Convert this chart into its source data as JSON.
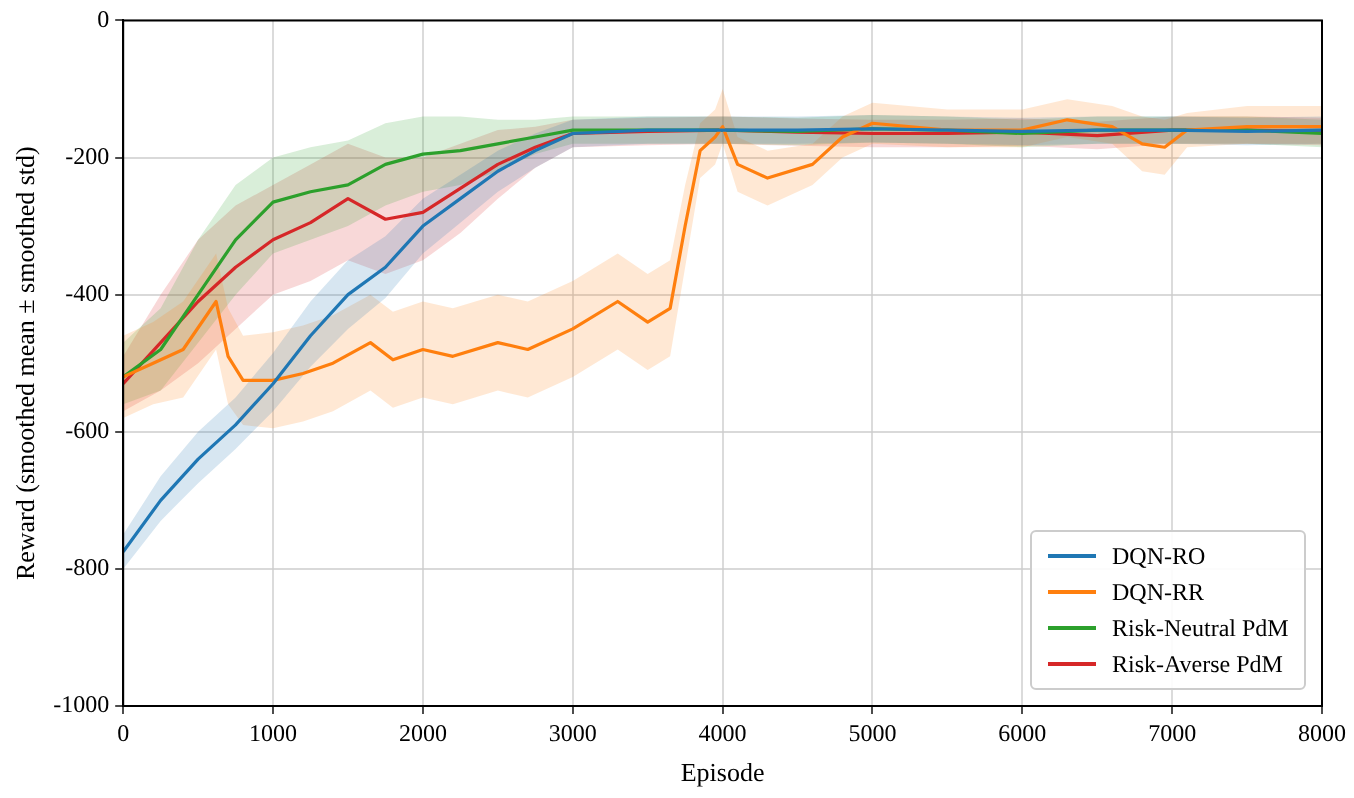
{
  "chart_data": {
    "type": "line",
    "xlabel": "Episode",
    "ylabel": "Reward (smoothed mean ± smoothed std)",
    "xlim": [
      0,
      8000
    ],
    "xticks": [
      0,
      1000,
      2000,
      3000,
      4000,
      5000,
      6000,
      7000,
      8000
    ],
    "ylim": [
      -1000,
      0
    ],
    "yticks": [
      -1000,
      -800,
      -600,
      -400,
      -200,
      0
    ],
    "grid": true,
    "legend": "bottom right",
    "line_style": "solid",
    "marker": "none",
    "series": [
      {
        "name": "DQN-RO",
        "color": "#1f77b4",
        "x": [
          0,
          250,
          500,
          750,
          1000,
          1250,
          1500,
          1750,
          2000,
          2250,
          2500,
          2750,
          3000,
          3500,
          4000,
          4500,
          5000,
          5500,
          6000,
          6500,
          7000,
          7500,
          8000
        ],
        "values": [
          -775,
          -700,
          -640,
          -590,
          -530,
          -460,
          -400,
          -360,
          -300,
          -260,
          -220,
          -190,
          -165,
          -160,
          -160,
          -160,
          -158,
          -160,
          -162,
          -160,
          -160,
          -162,
          -160
        ],
        "lower": [
          -800,
          -730,
          -675,
          -625,
          -570,
          -505,
          -450,
          -405,
          -340,
          -295,
          -250,
          -215,
          -185,
          -180,
          -180,
          -180,
          -178,
          -180,
          -182,
          -180,
          -180,
          -182,
          -180
        ],
        "upper": [
          -750,
          -665,
          -600,
          -550,
          -485,
          -410,
          -350,
          -315,
          -260,
          -225,
          -190,
          -165,
          -145,
          -140,
          -140,
          -140,
          -138,
          -140,
          -142,
          -140,
          -140,
          -142,
          -140
        ]
      },
      {
        "name": "DQN-RR",
        "color": "#ff7f0e",
        "x": [
          0,
          200,
          400,
          620,
          700,
          800,
          1000,
          1200,
          1400,
          1650,
          1800,
          2000,
          2200,
          2500,
          2700,
          3000,
          3300,
          3500,
          3650,
          3750,
          3850,
          3950,
          4000,
          4100,
          4300,
          4600,
          4800,
          5000,
          5500,
          6000,
          6300,
          6600,
          6800,
          6950,
          7100,
          7500,
          8000
        ],
        "values": [
          -520,
          -500,
          -480,
          -410,
          -490,
          -525,
          -525,
          -515,
          -500,
          -470,
          -495,
          -480,
          -490,
          -470,
          -480,
          -450,
          -410,
          -440,
          -420,
          -300,
          -190,
          -170,
          -155,
          -210,
          -230,
          -210,
          -170,
          -150,
          -160,
          -160,
          -145,
          -155,
          -180,
          -185,
          -160,
          -155,
          -155
        ],
        "lower": [
          -580,
          -560,
          -550,
          -480,
          -560,
          -590,
          -595,
          -585,
          -570,
          -540,
          -565,
          -550,
          -560,
          -540,
          -550,
          -520,
          -480,
          -510,
          -490,
          -360,
          -230,
          -210,
          -180,
          -250,
          -270,
          -240,
          -200,
          -180,
          -185,
          -185,
          -170,
          -180,
          -220,
          -225,
          -185,
          -180,
          -180
        ],
        "upper": [
          -460,
          -440,
          -410,
          -340,
          -420,
          -460,
          -455,
          -445,
          -430,
          -400,
          -425,
          -410,
          -420,
          -400,
          -410,
          -380,
          -340,
          -370,
          -350,
          -240,
          -150,
          -130,
          -100,
          -170,
          -190,
          -180,
          -140,
          -120,
          -130,
          -130,
          -115,
          -125,
          -140,
          -145,
          -135,
          -125,
          -125
        ]
      },
      {
        "name": "Risk-Neutral PdM",
        "color": "#2ca02c",
        "x": [
          0,
          250,
          500,
          750,
          1000,
          1250,
          1500,
          1750,
          2000,
          2250,
          2500,
          2750,
          3000,
          3500,
          4000,
          4500,
          5000,
          5500,
          6000,
          6500,
          7000,
          7500,
          8000
        ],
        "values": [
          -520,
          -480,
          -400,
          -320,
          -265,
          -250,
          -240,
          -210,
          -195,
          -190,
          -180,
          -170,
          -160,
          -160,
          -160,
          -162,
          -158,
          -160,
          -165,
          -160,
          -160,
          -160,
          -165
        ],
        "lower": [
          -560,
          -540,
          -470,
          -400,
          -340,
          -320,
          -300,
          -270,
          -250,
          -240,
          -220,
          -195,
          -180,
          -180,
          -180,
          -182,
          -178,
          -180,
          -185,
          -180,
          -180,
          -180,
          -185
        ],
        "upper": [
          -470,
          -420,
          -320,
          -240,
          -200,
          -185,
          -175,
          -150,
          -140,
          -140,
          -145,
          -145,
          -140,
          -140,
          -140,
          -142,
          -138,
          -140,
          -145,
          -140,
          -140,
          -140,
          -145
        ]
      },
      {
        "name": "Risk-Averse PdM",
        "color": "#d62728",
        "x": [
          0,
          250,
          500,
          750,
          1000,
          1250,
          1500,
          1750,
          2000,
          2250,
          2500,
          2750,
          3000,
          3500,
          4000,
          4500,
          5000,
          5500,
          6000,
          6500,
          7000,
          7500,
          8000
        ],
        "values": [
          -530,
          -470,
          -410,
          -360,
          -320,
          -295,
          -260,
          -290,
          -280,
          -245,
          -210,
          -185,
          -165,
          -162,
          -160,
          -163,
          -165,
          -165,
          -163,
          -168,
          -160,
          -160,
          -162
        ],
        "lower": [
          -570,
          -540,
          -500,
          -450,
          -400,
          -380,
          -350,
          -370,
          -350,
          -310,
          -260,
          -215,
          -185,
          -182,
          -180,
          -183,
          -185,
          -185,
          -183,
          -188,
          -180,
          -180,
          -182
        ],
        "upper": [
          -490,
          -400,
          -320,
          -270,
          -240,
          -210,
          -180,
          -200,
          -200,
          -180,
          -160,
          -155,
          -145,
          -142,
          -140,
          -143,
          -145,
          -145,
          -143,
          -148,
          -140,
          -140,
          -142
        ]
      }
    ]
  }
}
